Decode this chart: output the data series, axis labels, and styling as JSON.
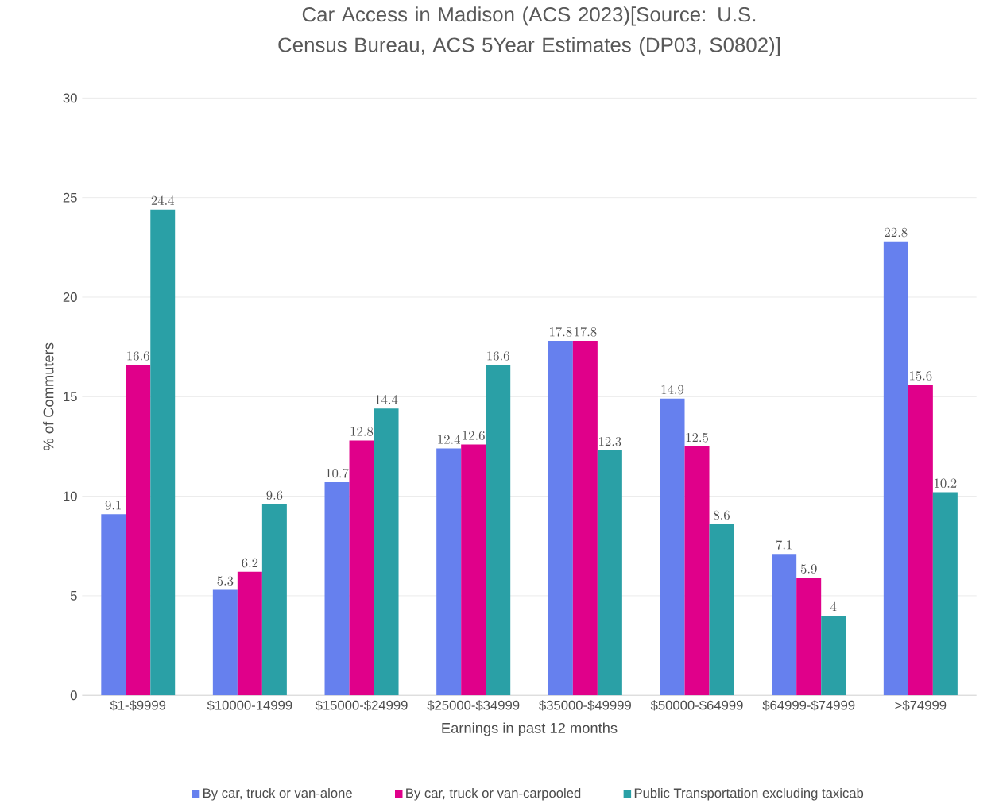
{
  "chart_data": {
    "type": "bar",
    "title": "Car Access in Madison (ACS 2023)[Source: U.S. Census Bureau, ACS 5Year Estimates (DP03, S0802)]",
    "xlabel": "Earnings in past 12 months",
    "ylabel": "% of Commuters",
    "categories": [
      "$1-$9999",
      "$10000-14999",
      "$15000-$24999",
      "$25000-$34999",
      "$35000-$49999",
      "$50000-$64999",
      "$64999-$74999",
      ">$74999"
    ],
    "series": [
      {
        "name": "By car, truck or van-alone",
        "color": "#6680ee",
        "values": [
          9.1,
          5.3,
          10.7,
          12.4,
          17.8,
          14.9,
          7.1,
          22.8
        ]
      },
      {
        "name": "By car, truck or van-carpooled",
        "color": "#e0008a",
        "values": [
          16.6,
          6.2,
          12.8,
          12.6,
          17.8,
          12.5,
          5.9,
          15.6
        ]
      },
      {
        "name": "Public Transportation excluding taxicab",
        "color": "#2aa0a6",
        "values": [
          24.4,
          9.6,
          14.4,
          16.6,
          12.3,
          8.6,
          4,
          10.2
        ]
      }
    ],
    "ylim": [
      0,
      30
    ],
    "yticks": [
      0,
      5,
      10,
      15,
      20,
      25,
      30
    ],
    "grid": "y",
    "legend": "bottom",
    "data_labels": true
  }
}
